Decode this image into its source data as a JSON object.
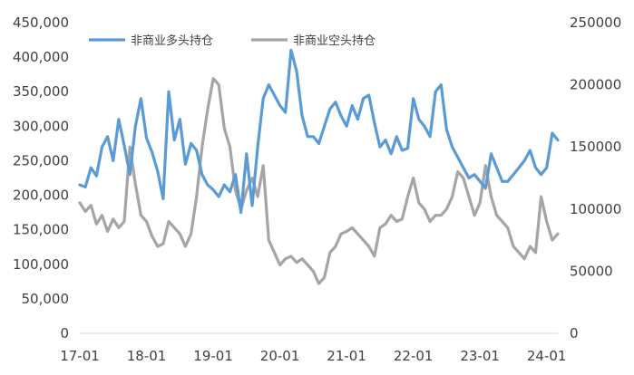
{
  "chart_data": {
    "type": "line",
    "title": "",
    "xlabel": "",
    "ylabel": "",
    "x_ticks": [
      "17-01",
      "18-01",
      "19-01",
      "20-01",
      "21-01",
      "22-01",
      "23-01",
      "24-01"
    ],
    "x_range": [
      "2017-01",
      "2024-03"
    ],
    "y_left": {
      "range": [
        0,
        450000
      ],
      "ticks": [
        "0",
        "50,000",
        "100,000",
        "150,000",
        "200,000",
        "250,000",
        "300,000",
        "350,000",
        "400,000",
        "450,000"
      ]
    },
    "y_right": {
      "range": [
        0,
        250000
      ],
      "ticks": [
        "0",
        "50000",
        "100000",
        "150000",
        "200000",
        "250000"
      ]
    },
    "grid": false,
    "legend": "top-left",
    "series": [
      {
        "name": "非商业多头持仓",
        "axis": "left",
        "color": "#5b9bd5",
        "x": [
          "2017-01",
          "2017-02",
          "2017-03",
          "2017-04",
          "2017-05",
          "2017-06",
          "2017-07",
          "2017-08",
          "2017-09",
          "2017-10",
          "2017-11",
          "2017-12",
          "2018-01",
          "2018-02",
          "2018-03",
          "2018-04",
          "2018-05",
          "2018-06",
          "2018-07",
          "2018-08",
          "2018-09",
          "2018-10",
          "2018-11",
          "2018-12",
          "2019-01",
          "2019-02",
          "2019-03",
          "2019-04",
          "2019-05",
          "2019-06",
          "2019-07",
          "2019-08",
          "2019-09",
          "2019-10",
          "2019-11",
          "2019-12",
          "2020-01",
          "2020-02",
          "2020-03",
          "2020-04",
          "2020-05",
          "2020-06",
          "2020-07",
          "2020-08",
          "2020-09",
          "2020-10",
          "2020-11",
          "2020-12",
          "2021-01",
          "2021-02",
          "2021-03",
          "2021-04",
          "2021-05",
          "2021-06",
          "2021-07",
          "2021-08",
          "2021-09",
          "2021-10",
          "2021-11",
          "2021-12",
          "2022-01",
          "2022-02",
          "2022-03",
          "2022-04",
          "2022-05",
          "2022-06",
          "2022-07",
          "2022-08",
          "2022-09",
          "2022-10",
          "2022-11",
          "2022-12",
          "2023-01",
          "2023-02",
          "2023-03",
          "2023-04",
          "2023-05",
          "2023-06",
          "2023-07",
          "2023-08",
          "2023-09",
          "2023-10",
          "2023-11",
          "2023-12",
          "2024-01",
          "2024-02",
          "2024-03"
        ],
        "values": [
          215000,
          212000,
          240000,
          228000,
          270000,
          285000,
          250000,
          310000,
          272000,
          230000,
          300000,
          340000,
          283000,
          262000,
          235000,
          195000,
          350000,
          280000,
          310000,
          245000,
          275000,
          265000,
          230000,
          215000,
          208000,
          198000,
          215000,
          205000,
          230000,
          175000,
          260000,
          185000,
          270000,
          340000,
          360000,
          345000,
          330000,
          320000,
          410000,
          380000,
          315000,
          285000,
          285000,
          275000,
          300000,
          325000,
          335000,
          315000,
          300000,
          330000,
          310000,
          340000,
          345000,
          305000,
          270000,
          280000,
          260000,
          285000,
          265000,
          268000,
          340000,
          310000,
          300000,
          285000,
          350000,
          360000,
          295000,
          270000,
          255000,
          240000,
          225000,
          230000,
          220000,
          210000,
          260000,
          240000,
          220000,
          220000,
          230000,
          240000,
          250000,
          265000,
          240000,
          230000,
          240000,
          290000,
          280000
        ]
      },
      {
        "name": "非商业空头持仓",
        "axis": "right",
        "color": "#a5a5a5",
        "x": [
          "2017-01",
          "2017-02",
          "2017-03",
          "2017-04",
          "2017-05",
          "2017-06",
          "2017-07",
          "2017-08",
          "2017-09",
          "2017-10",
          "2017-11",
          "2017-12",
          "2018-01",
          "2018-02",
          "2018-03",
          "2018-04",
          "2018-05",
          "2018-06",
          "2018-07",
          "2018-08",
          "2018-09",
          "2018-10",
          "2018-11",
          "2018-12",
          "2019-01",
          "2019-02",
          "2019-03",
          "2019-04",
          "2019-05",
          "2019-06",
          "2019-07",
          "2019-08",
          "2019-09",
          "2019-10",
          "2019-11",
          "2019-12",
          "2020-01",
          "2020-02",
          "2020-03",
          "2020-04",
          "2020-05",
          "2020-06",
          "2020-07",
          "2020-08",
          "2020-09",
          "2020-10",
          "2020-11",
          "2020-12",
          "2021-01",
          "2021-02",
          "2021-03",
          "2021-04",
          "2021-05",
          "2021-06",
          "2021-07",
          "2021-08",
          "2021-09",
          "2021-10",
          "2021-11",
          "2021-12",
          "2022-01",
          "2022-02",
          "2022-03",
          "2022-04",
          "2022-05",
          "2022-06",
          "2022-07",
          "2022-08",
          "2022-09",
          "2022-10",
          "2022-11",
          "2022-12",
          "2023-01",
          "2023-02",
          "2023-03",
          "2023-04",
          "2023-05",
          "2023-06",
          "2023-07",
          "2023-08",
          "2023-09",
          "2023-10",
          "2023-11",
          "2023-12",
          "2024-01",
          "2024-02",
          "2024-03"
        ],
        "values": [
          105000,
          98000,
          103000,
          88000,
          95000,
          82000,
          92000,
          85000,
          90000,
          150000,
          120000,
          95000,
          90000,
          78000,
          70000,
          72000,
          90000,
          85000,
          80000,
          70000,
          80000,
          110000,
          150000,
          180000,
          205000,
          200000,
          165000,
          150000,
          115000,
          100000,
          115000,
          125000,
          110000,
          135000,
          75000,
          65000,
          55000,
          60000,
          62000,
          57000,
          60000,
          55000,
          50000,
          40000,
          45000,
          65000,
          70000,
          80000,
          82000,
          85000,
          80000,
          75000,
          70000,
          62000,
          85000,
          88000,
          95000,
          90000,
          92000,
          110000,
          125000,
          105000,
          100000,
          90000,
          95000,
          95000,
          100000,
          110000,
          130000,
          125000,
          110000,
          95000,
          105000,
          135000,
          110000,
          95000,
          90000,
          85000,
          70000,
          65000,
          60000,
          70000,
          65000,
          110000,
          90000,
          75000,
          80000
        ]
      }
    ]
  }
}
